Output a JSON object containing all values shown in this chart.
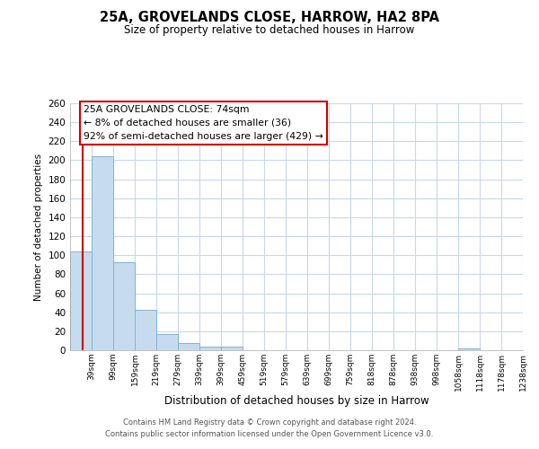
{
  "title": "25A, GROVELANDS CLOSE, HARROW, HA2 8PA",
  "subtitle": "Size of property relative to detached houses in Harrow",
  "xlabel": "Distribution of detached houses by size in Harrow",
  "ylabel": "Number of detached properties",
  "bar_labels": [
    "39sqm",
    "99sqm",
    "159sqm",
    "219sqm",
    "279sqm",
    "339sqm",
    "399sqm",
    "459sqm",
    "519sqm",
    "579sqm",
    "639sqm",
    "699sqm",
    "759sqm",
    "818sqm",
    "878sqm",
    "938sqm",
    "998sqm",
    "1058sqm",
    "1118sqm",
    "1178sqm",
    "1238sqm"
  ],
  "bar_values": [
    104,
    204,
    93,
    43,
    17,
    8,
    4,
    4,
    0,
    0,
    0,
    0,
    0,
    0,
    0,
    0,
    0,
    0,
    2,
    0,
    0
  ],
  "bar_color": "#c6dcee",
  "bar_edge_color": "#7fb3d3",
  "ylim": [
    0,
    260
  ],
  "yticks": [
    0,
    20,
    40,
    60,
    80,
    100,
    120,
    140,
    160,
    180,
    200,
    220,
    240,
    260
  ],
  "property_line_color": "#cc0000",
  "annotation_title": "25A GROVELANDS CLOSE: 74sqm",
  "annotation_line1": "← 8% of detached houses are smaller (36)",
  "annotation_line2": "92% of semi-detached houses are larger (429) →",
  "annotation_box_color": "#ffffff",
  "annotation_box_edge": "#cc0000",
  "footer_line1": "Contains HM Land Registry data © Crown copyright and database right 2024.",
  "footer_line2": "Contains public sector information licensed under the Open Government Licence v3.0.",
  "background_color": "#ffffff",
  "grid_color": "#c8d8e8"
}
